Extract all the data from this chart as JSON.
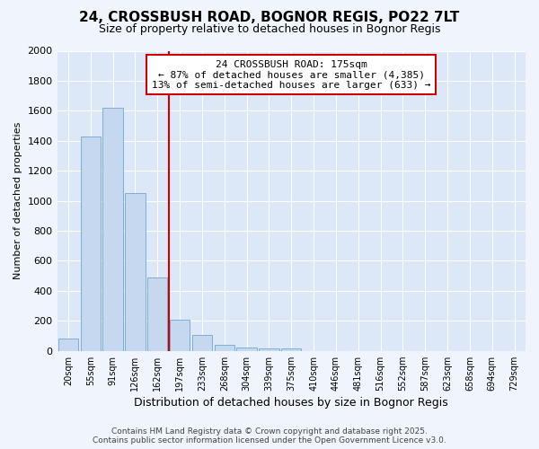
{
  "title": "24, CROSSBUSH ROAD, BOGNOR REGIS, PO22 7LT",
  "subtitle": "Size of property relative to detached houses in Bognor Regis",
  "xlabel": "Distribution of detached houses by size in Bognor Regis",
  "ylabel": "Number of detached properties",
  "categories": [
    "20sqm",
    "55sqm",
    "91sqm",
    "126sqm",
    "162sqm",
    "197sqm",
    "233sqm",
    "268sqm",
    "304sqm",
    "339sqm",
    "375sqm",
    "410sqm",
    "446sqm",
    "481sqm",
    "516sqm",
    "552sqm",
    "587sqm",
    "623sqm",
    "658sqm",
    "694sqm",
    "729sqm"
  ],
  "values": [
    80,
    1430,
    1620,
    1050,
    490,
    205,
    105,
    38,
    22,
    18,
    18,
    0,
    0,
    0,
    0,
    0,
    0,
    0,
    0,
    0,
    0
  ],
  "bar_color": "#c5d8f0",
  "bar_edge_color": "#7bafd4",
  "annotation_title": "24 CROSSBUSH ROAD: 175sqm",
  "annotation_line1": "← 87% of detached houses are smaller (4,385)",
  "annotation_line2": "13% of semi-detached houses are larger (633) →",
  "annotation_box_facecolor": "#ffffff",
  "annotation_box_edgecolor": "#cc0000",
  "vline_color": "#cc0000",
  "vline_x_index": 4.5,
  "ylim": [
    0,
    2000
  ],
  "yticks": [
    0,
    200,
    400,
    600,
    800,
    1000,
    1200,
    1400,
    1600,
    1800,
    2000
  ],
  "footer_line1": "Contains HM Land Registry data © Crown copyright and database right 2025.",
  "footer_line2": "Contains public sector information licensed under the Open Government Licence v3.0.",
  "bg_color": "#f0f4fc",
  "plot_bg_color": "#dce8f8",
  "grid_color": "#ffffff",
  "title_fontsize": 11,
  "subtitle_fontsize": 9,
  "annotation_fontsize": 8,
  "ylabel_fontsize": 8,
  "xlabel_fontsize": 9,
  "xtick_fontsize": 7,
  "ytick_fontsize": 8,
  "footer_fontsize": 6.5
}
